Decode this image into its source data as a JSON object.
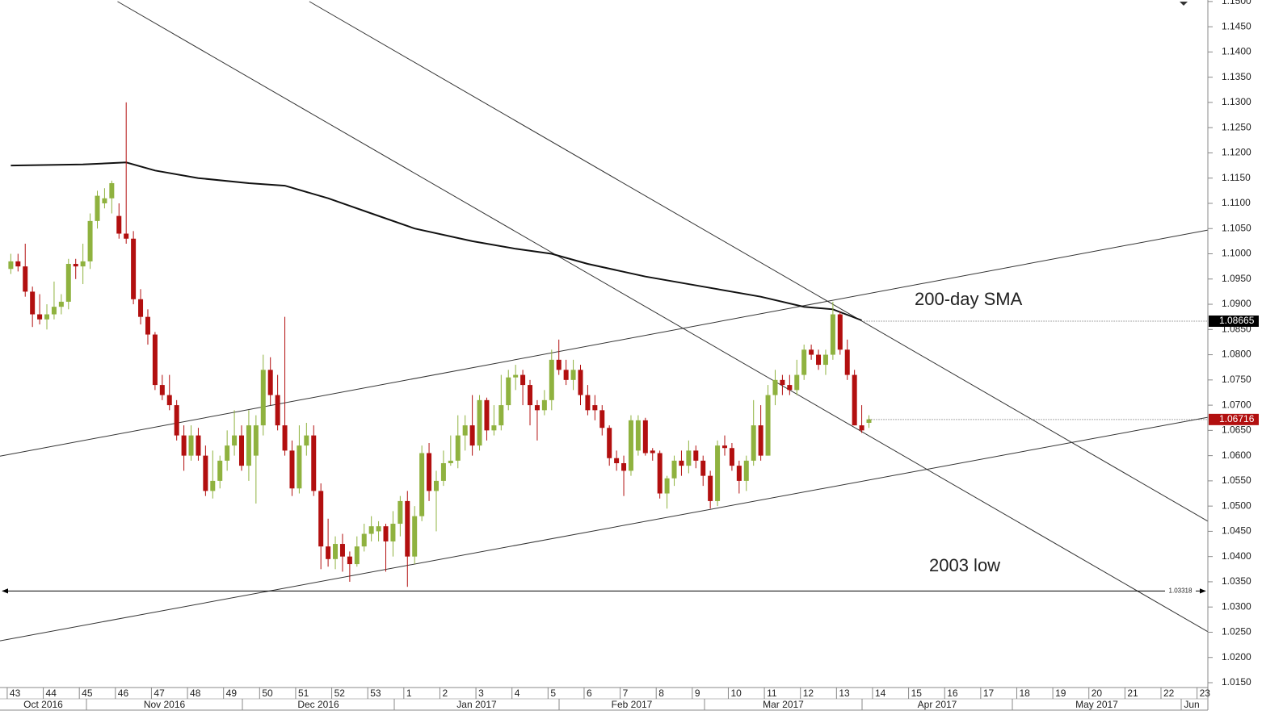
{
  "chart_data": {
    "type": "candlestick",
    "up_color": "#8fb23f",
    "down_color": "#b20f0f",
    "ohlc": [
      [
        1.097,
        1.1,
        1.096,
        1.0985
      ],
      [
        1.0985,
        1.1,
        1.0965,
        1.0975
      ],
      [
        1.0975,
        1.102,
        1.0915,
        1.0925
      ],
      [
        1.0925,
        1.0935,
        1.0855,
        1.088
      ],
      [
        1.088,
        1.092,
        1.086,
        1.087
      ],
      [
        1.087,
        1.09,
        1.085,
        1.088
      ],
      [
        1.088,
        1.0945,
        1.087,
        1.0895
      ],
      [
        1.0895,
        1.092,
        1.088,
        1.0905
      ],
      [
        1.0905,
        1.099,
        1.089,
        1.098
      ],
      [
        1.098,
        1.099,
        1.095,
        1.0975
      ],
      [
        1.0975,
        1.102,
        1.094,
        1.0985
      ],
      [
        1.0985,
        1.108,
        1.097,
        1.1065
      ],
      [
        1.1065,
        1.1125,
        1.105,
        1.1115
      ],
      [
        1.11,
        1.113,
        1.109,
        1.111
      ],
      [
        1.111,
        1.1145,
        1.108,
        1.114
      ],
      [
        1.1075,
        1.11,
        1.103,
        1.104
      ],
      [
        1.104,
        1.13,
        1.102,
        1.103
      ],
      [
        1.103,
        1.1045,
        1.09,
        1.091
      ],
      [
        1.091,
        1.093,
        1.086,
        1.0875
      ],
      [
        1.0875,
        1.089,
        1.082,
        1.084
      ],
      [
        1.084,
        1.0845,
        1.073,
        1.074
      ],
      [
        1.074,
        1.076,
        1.071,
        1.072
      ],
      [
        1.072,
        1.076,
        1.069,
        1.07
      ],
      [
        1.07,
        1.071,
        1.063,
        1.064
      ],
      [
        1.064,
        1.066,
        1.057,
        1.06
      ],
      [
        1.06,
        1.066,
        1.059,
        1.064
      ],
      [
        1.064,
        1.0655,
        1.059,
        1.06
      ],
      [
        1.06,
        1.062,
        1.052,
        1.053
      ],
      [
        1.053,
        1.061,
        1.0515,
        1.055
      ],
      [
        1.055,
        1.06,
        1.0535,
        1.059
      ],
      [
        1.059,
        1.065,
        1.057,
        1.062
      ],
      [
        1.062,
        1.069,
        1.06,
        1.064
      ],
      [
        1.064,
        1.066,
        1.057,
        1.058
      ],
      [
        1.058,
        1.069,
        1.055,
        1.066
      ],
      [
        1.06,
        1.068,
        1.0505,
        1.066
      ],
      [
        1.066,
        1.08,
        1.064,
        1.077
      ],
      [
        1.077,
        1.0795,
        1.07,
        1.072
      ],
      [
        1.072,
        1.076,
        1.065,
        1.066
      ],
      [
        1.066,
        1.0875,
        1.06,
        1.061
      ],
      [
        1.061,
        1.063,
        1.052,
        1.0535
      ],
      [
        1.0535,
        1.066,
        1.0525,
        1.062
      ],
      [
        1.062,
        1.0665,
        1.06,
        1.064
      ],
      [
        1.064,
        1.066,
        1.052,
        1.053
      ],
      [
        1.053,
        1.0545,
        1.0375,
        1.042
      ],
      [
        1.042,
        1.0475,
        1.038,
        1.0395
      ],
      [
        1.0395,
        1.044,
        1.0375,
        1.0425
      ],
      [
        1.0425,
        1.0445,
        1.037,
        1.04
      ],
      [
        1.04,
        1.041,
        1.035,
        1.0385
      ],
      [
        1.0385,
        1.044,
        1.038,
        1.042
      ],
      [
        1.042,
        1.0465,
        1.041,
        1.0445
      ],
      [
        1.0445,
        1.048,
        1.043,
        1.046
      ],
      [
        1.045,
        1.047,
        1.043,
        1.046
      ],
      [
        1.046,
        1.0465,
        1.037,
        1.043
      ],
      [
        1.043,
        1.049,
        1.04,
        1.0465
      ],
      [
        1.0465,
        1.052,
        1.044,
        1.051
      ],
      [
        1.051,
        1.053,
        1.034,
        1.04
      ],
      [
        1.04,
        1.05,
        1.0385,
        1.048
      ],
      [
        1.048,
        1.062,
        1.047,
        1.0605
      ],
      [
        1.0605,
        1.0625,
        1.051,
        1.053
      ],
      [
        1.053,
        1.057,
        1.045,
        1.055
      ],
      [
        1.055,
        1.061,
        1.054,
        1.0585
      ],
      [
        1.0585,
        1.064,
        1.058,
        1.059
      ],
      [
        1.059,
        1.068,
        1.0575,
        1.064
      ],
      [
        1.064,
        1.068,
        1.061,
        1.066
      ],
      [
        1.066,
        1.072,
        1.06,
        1.062
      ],
      [
        1.062,
        1.072,
        1.061,
        1.071
      ],
      [
        1.071,
        1.0715,
        1.063,
        1.065
      ],
      [
        1.065,
        1.07,
        1.064,
        1.066
      ],
      [
        1.066,
        1.076,
        1.065,
        1.07
      ],
      [
        1.07,
        1.077,
        1.069,
        1.0755
      ],
      [
        1.0755,
        1.078,
        1.073,
        1.076
      ],
      [
        1.076,
        1.077,
        1.07,
        1.074
      ],
      [
        1.074,
        1.075,
        1.066,
        1.07
      ],
      [
        1.07,
        1.071,
        1.063,
        1.069
      ],
      [
        1.069,
        1.073,
        1.068,
        1.071
      ],
      [
        1.071,
        1.081,
        1.069,
        1.079
      ],
      [
        1.079,
        1.083,
        1.076,
        1.077
      ],
      [
        1.077,
        1.079,
        1.074,
        1.075
      ],
      [
        1.075,
        1.079,
        1.073,
        1.077
      ],
      [
        1.077,
        1.078,
        1.07,
        1.072
      ],
      [
        1.072,
        1.074,
        1.068,
        1.069
      ],
      [
        1.07,
        1.072,
        1.067,
        1.069
      ],
      [
        1.069,
        1.07,
        1.064,
        1.0655
      ],
      [
        1.0655,
        1.066,
        1.058,
        1.0595
      ],
      [
        1.0595,
        1.061,
        1.057,
        1.0585
      ],
      [
        1.0585,
        1.06,
        1.052,
        1.057
      ],
      [
        1.057,
        1.068,
        1.056,
        1.067
      ],
      [
        1.061,
        1.068,
        1.06,
        1.067
      ],
      [
        1.067,
        1.0675,
        1.06,
        1.0605
      ],
      [
        1.061,
        1.0615,
        1.059,
        1.0605
      ],
      [
        1.0605,
        1.061,
        1.0515,
        1.0525
      ],
      [
        1.0525,
        1.056,
        1.0495,
        1.0555
      ],
      [
        1.0555,
        1.06,
        1.054,
        1.059
      ],
      [
        1.059,
        1.061,
        1.056,
        1.058
      ],
      [
        1.058,
        1.063,
        1.0565,
        1.061
      ],
      [
        1.061,
        1.062,
        1.0575,
        1.059
      ],
      [
        1.059,
        1.06,
        1.054,
        1.056
      ],
      [
        1.056,
        1.057,
        1.0495,
        1.051
      ],
      [
        1.051,
        1.063,
        1.05,
        1.062
      ],
      [
        1.062,
        1.064,
        1.06,
        1.0615
      ],
      [
        1.0615,
        1.0625,
        1.057,
        1.058
      ],
      [
        1.058,
        1.059,
        1.0525,
        1.055
      ],
      [
        1.055,
        1.06,
        1.053,
        1.059
      ],
      [
        1.059,
        1.071,
        1.058,
        1.066
      ],
      [
        1.066,
        1.07,
        1.059,
        1.06
      ],
      [
        1.06,
        1.074,
        1.06,
        1.072
      ],
      [
        1.072,
        1.077,
        1.07,
        1.075
      ],
      [
        1.075,
        1.076,
        1.072,
        1.074
      ],
      [
        1.074,
        1.076,
        1.072,
        1.073
      ],
      [
        1.073,
        1.079,
        1.072,
        1.076
      ],
      [
        1.076,
        1.082,
        1.075,
        1.081
      ],
      [
        1.081,
        1.082,
        1.079,
        1.08
      ],
      [
        1.08,
        1.081,
        1.077,
        1.078
      ],
      [
        1.078,
        1.081,
        1.076,
        1.08
      ],
      [
        1.08,
        1.0905,
        1.079,
        1.088
      ],
      [
        1.088,
        1.0885,
        1.08,
        1.081
      ],
      [
        1.081,
        1.083,
        1.075,
        1.076
      ],
      [
        1.076,
        1.077,
        1.066,
        1.066
      ],
      [
        1.066,
        1.07,
        1.0645,
        1.065
      ],
      [
        1.0665,
        1.068,
        1.0655,
        1.0672
      ]
    ],
    "sma": {
      "x": [
        0,
        10,
        16,
        20,
        26,
        33,
        38,
        44,
        50,
        56,
        64,
        70,
        75,
        80,
        88,
        96,
        104,
        110,
        114,
        118
      ],
      "values": [
        1.1175,
        1.1177,
        1.1181,
        1.1165,
        1.115,
        1.114,
        1.1135,
        1.111,
        1.108,
        1.105,
        1.1025,
        1.101,
        1.1,
        1.098,
        1.0955,
        1.0935,
        1.0915,
        1.0895,
        1.089,
        1.0868
      ]
    },
    "trendlines": [
      {
        "x": [
          -1.5,
          166
        ],
        "y": [
          1.0599,
          1.1047
        ]
      },
      {
        "x": [
          -1.5,
          166
        ],
        "y": [
          1.0233,
          1.0676
        ]
      },
      {
        "x": [
          14.8,
          166
        ],
        "y": [
          1.15,
          1.0251
        ]
      },
      {
        "x": [
          41.4,
          166
        ],
        "y": [
          1.15,
          1.047
        ]
      }
    ],
    "support": 1.03318,
    "sma_last": 1.08665,
    "last_price": 1.06716,
    "annotations": [
      "200-day SMA",
      "2003 low"
    ],
    "weeks": [
      "43",
      "44",
      "45",
      "46",
      "47",
      "48",
      "49",
      "50",
      "51",
      "52",
      "53",
      "1",
      "2",
      "3",
      "4",
      "5",
      "6",
      "7",
      "8",
      "9",
      "10",
      "11",
      "12",
      "13",
      "14",
      "15",
      "16",
      "17",
      "18",
      "19",
      "20",
      "21",
      "22",
      "23"
    ],
    "months": [
      "Oct 2016",
      "Nov 2016",
      "Dec 2016",
      "Jan 2017",
      "Feb 2017",
      "Mar 2017",
      "Apr 2017",
      "May 2017",
      "Jun"
    ],
    "xlim": [
      -1.5,
      166
    ],
    "ylim": [
      1.0142,
      1.1503
    ],
    "yticks": [
      {
        "value": 1.015,
        "label": "1.0150"
      },
      {
        "value": 1.02,
        "label": "1.0200"
      },
      {
        "value": 1.025,
        "label": "1.0250"
      },
      {
        "value": 1.03,
        "label": "1.0300"
      },
      {
        "value": 1.035,
        "label": "1.0350"
      },
      {
        "value": 1.04,
        "label": "1.0400"
      },
      {
        "value": 1.045,
        "label": "1.0450"
      },
      {
        "value": 1.05,
        "label": "1.0500"
      },
      {
        "value": 1.055,
        "label": "1.0550"
      },
      {
        "value": 1.06,
        "label": "1.0600"
      },
      {
        "value": 1.065,
        "label": "1.0650"
      },
      {
        "value": 1.07,
        "label": "1.0700"
      },
      {
        "value": 1.075,
        "label": "1.0750"
      },
      {
        "value": 1.08,
        "label": "1.0800"
      },
      {
        "value": 1.085,
        "label": "1.0850"
      },
      {
        "value": 1.09,
        "label": "1.0900"
      },
      {
        "value": 1.095,
        "label": "1.0950"
      },
      {
        "value": 1.1,
        "label": "1.1000"
      },
      {
        "value": 1.105,
        "label": "1.1050"
      },
      {
        "value": 1.11,
        "label": "1.1100"
      },
      {
        "value": 1.115,
        "label": "1.1150"
      },
      {
        "value": 1.12,
        "label": "1.1200"
      },
      {
        "value": 1.125,
        "label": "1.1250"
      },
      {
        "value": 1.13,
        "label": "1.1300"
      },
      {
        "value": 1.135,
        "label": "1.1350"
      },
      {
        "value": 1.14,
        "label": "1.1400"
      },
      {
        "value": 1.145,
        "label": "1.1450"
      },
      {
        "value": 1.15,
        "label": "1.1500"
      }
    ]
  }
}
